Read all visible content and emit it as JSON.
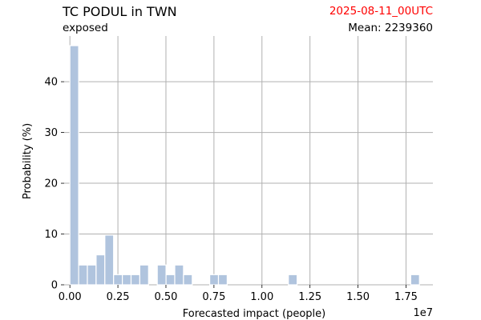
{
  "header": {
    "title": "TC PODUL in TWN",
    "subtitle": "exposed",
    "timestamp": "2025-08-11_00UTC",
    "timestamp_color": "#ff0000",
    "mean_label": "Mean: 2239360"
  },
  "chart_data": {
    "type": "bar",
    "title": "TC PODUL in TWN",
    "subtitle": "exposed",
    "xlabel": "Forecasted impact (people)",
    "ylabel": "Probability (%)",
    "x_scale_label": "1e7",
    "xlim": [
      -0.03,
      1.89
    ],
    "ylim": [
      0,
      49
    ],
    "xticks": [
      0.0,
      0.25,
      0.5,
      0.75,
      1.0,
      1.25,
      1.5,
      1.75
    ],
    "xtick_labels": [
      "0.00",
      "0.25",
      "0.50",
      "0.75",
      "1.00",
      "1.25",
      "1.50",
      "1.75"
    ],
    "yticks": [
      0,
      10,
      20,
      30,
      40
    ],
    "ytick_labels": [
      "0",
      "10",
      "20",
      "30",
      "40"
    ],
    "bin_width": 0.0455,
    "bins": [
      {
        "x": 0.0,
        "value": 47.1
      },
      {
        "x": 0.0455,
        "value": 3.9
      },
      {
        "x": 0.091,
        "value": 3.9
      },
      {
        "x": 0.1365,
        "value": 5.9
      },
      {
        "x": 0.182,
        "value": 9.8
      },
      {
        "x": 0.2275,
        "value": 2.0
      },
      {
        "x": 0.273,
        "value": 2.0
      },
      {
        "x": 0.3185,
        "value": 2.0
      },
      {
        "x": 0.364,
        "value": 3.9
      },
      {
        "x": 0.455,
        "value": 3.9
      },
      {
        "x": 0.5005,
        "value": 2.0
      },
      {
        "x": 0.546,
        "value": 3.9
      },
      {
        "x": 0.5915,
        "value": 2.0
      },
      {
        "x": 0.728,
        "value": 2.0
      },
      {
        "x": 0.7735,
        "value": 2.0
      },
      {
        "x": 1.1375,
        "value": 2.0
      },
      {
        "x": 1.7745,
        "value": 2.0
      }
    ],
    "bar_color": "#b0c4de",
    "bar_edge_color": "#ffffff",
    "grid": true,
    "grid_color": "#b0b0b0"
  }
}
